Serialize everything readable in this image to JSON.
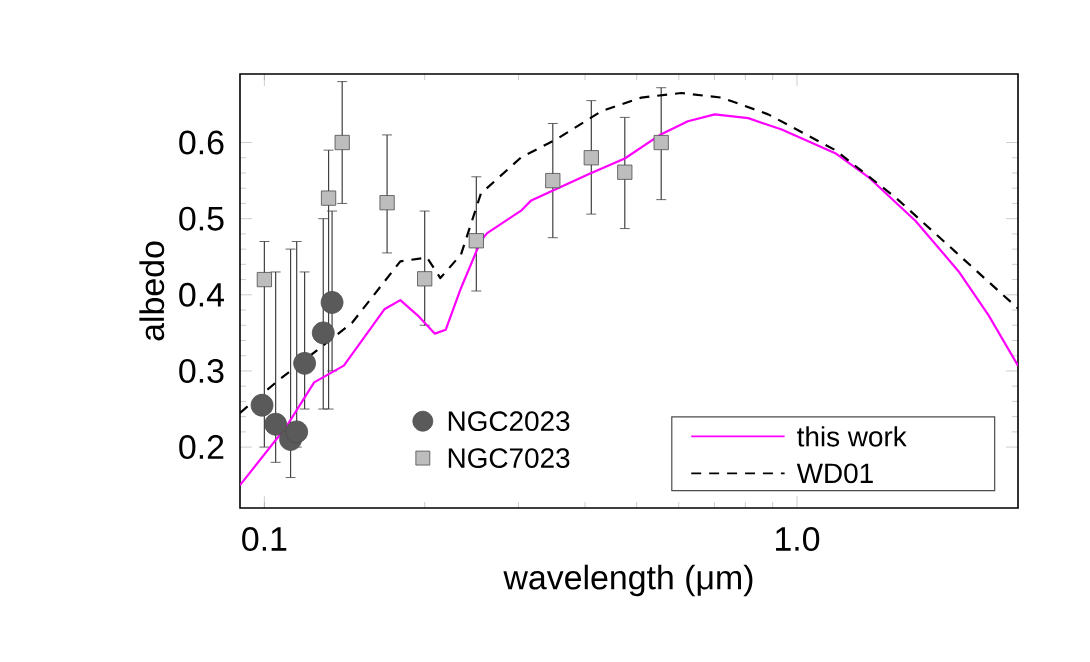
{
  "chart_data": {
    "type": "line",
    "xlabel": "wavelength (μm)",
    "ylabel": "albedo",
    "log": "x",
    "xlim": [
      0.09,
      2.6
    ],
    "ylim": [
      0.12,
      0.69
    ],
    "xticks": [
      0.1,
      {
        "value": 1,
        "label": "1.0"
      }
    ],
    "yticks": [
      0.2,
      0.3,
      0.4,
      0.5,
      0.6
    ],
    "legend": "bottom",
    "grid": false,
    "series": [
      {
        "name": "NGC2023",
        "type": "scatter",
        "marker": "circle",
        "color": "#5a5a5a",
        "x": [
          0.099,
          0.105,
          0.112,
          0.115,
          0.119,
          0.129,
          0.134
        ],
        "values": [
          0.255,
          0.23,
          0.21,
          0.22,
          0.31,
          0.35,
          0.39
        ],
        "errors": [
          null,
          [
            0.18,
            0.43
          ],
          [
            0.16,
            0.46
          ],
          [
            0.2,
            0.47
          ],
          [
            0.25,
            0.43
          ],
          [
            0.25,
            0.5
          ],
          [
            0.3,
            0.51
          ]
        ]
      },
      {
        "name": "NGC7023",
        "type": "scatter",
        "marker": "square",
        "color": "#bdbdbd",
        "x": [
          0.1,
          0.132,
          0.14,
          0.17,
          0.2,
          0.25,
          0.348,
          0.411,
          0.475,
          0.556
        ],
        "values": [
          0.42,
          0.527,
          0.6,
          0.521,
          0.421,
          0.471,
          0.55,
          0.58,
          0.561,
          0.6
        ],
        "errors": [
          [
            0.2,
            0.47
          ],
          [
            0.25,
            0.59
          ],
          [
            0.52,
            0.68
          ],
          [
            0.455,
            0.61
          ],
          [
            0.36,
            0.51
          ],
          [
            0.405,
            0.555
          ],
          [
            0.475,
            0.625
          ],
          [
            0.506,
            0.655
          ],
          [
            0.487,
            0.633
          ],
          [
            0.525,
            0.672
          ]
        ]
      },
      {
        "name": "this work",
        "line_style": "solid",
        "color": "#ff00ff",
        "x": [
          0.09,
          0.11,
          0.124,
          0.141,
          0.168,
          0.18,
          0.194,
          0.209,
          0.219,
          0.234,
          0.255,
          0.262,
          0.304,
          0.317,
          0.405,
          0.475,
          0.556,
          0.624,
          0.701,
          0.81,
          0.936,
          1.18,
          1.36,
          1.67,
          2.01,
          2.29,
          2.6
        ],
        "values": [
          0.15,
          0.227,
          0.285,
          0.307,
          0.381,
          0.393,
          0.373,
          0.349,
          0.354,
          0.409,
          0.471,
          0.481,
          0.511,
          0.524,
          0.558,
          0.579,
          0.611,
          0.628,
          0.637,
          0.632,
          0.617,
          0.586,
          0.555,
          0.497,
          0.431,
          0.373,
          0.307
        ]
      },
      {
        "name": "WD01",
        "line_style": "dashed",
        "color": "#000000",
        "x": [
          0.09,
          0.106,
          0.146,
          0.18,
          0.202,
          0.214,
          0.234,
          0.255,
          0.304,
          0.351,
          0.429,
          0.51,
          0.606,
          0.722,
          0.883,
          1.18,
          1.53,
          1.98,
          2.6
        ],
        "values": [
          0.245,
          0.287,
          0.363,
          0.444,
          0.449,
          0.422,
          0.453,
          0.533,
          0.581,
          0.603,
          0.641,
          0.659,
          0.665,
          0.659,
          0.637,
          0.59,
          0.528,
          0.457,
          0.382
        ]
      }
    ]
  }
}
